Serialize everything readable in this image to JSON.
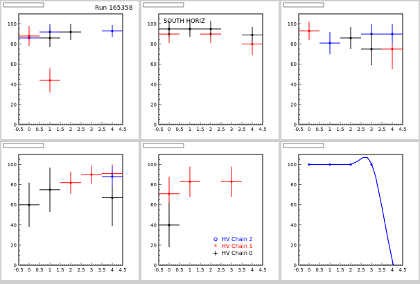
{
  "colors": {
    "blue": "#0000ff",
    "red": "#ff0000",
    "black": "#000000"
  },
  "run_label": "Run 165358",
  "south_label": "SOUTH HORIZ",
  "legend": [
    {
      "label": "HV Chain 2",
      "color": "#0000ff",
      "marker": "circle"
    },
    {
      "label": "HV Chain 1",
      "color": "#ff0000",
      "marker": "star"
    },
    {
      "label": "HV Chain 0",
      "color": "#000000",
      "marker": "plus"
    }
  ],
  "chart_data": [
    {
      "type": "scatter",
      "pad_title": "",
      "xlim": [
        -0.5,
        4.5
      ],
      "ylim": [
        0,
        110
      ],
      "xticks": [
        -0.5,
        0,
        0.5,
        1,
        1.5,
        2,
        2.5,
        3,
        3.5,
        4,
        4.5
      ],
      "yticks": [
        0,
        20,
        40,
        60,
        80,
        100
      ],
      "series": [
        {
          "color": "blue",
          "points": [
            {
              "x": 0,
              "y": 86,
              "ex": 0.5,
              "ey": 8
            },
            {
              "x": 1,
              "y": 92,
              "ex": 0.5,
              "ey": 8
            },
            {
              "x": 4,
              "y": 93,
              "ex": 0.5,
              "ey": 6
            }
          ]
        },
        {
          "color": "red",
          "points": [
            {
              "x": 0,
              "y": 88,
              "ex": 0.5,
              "ey": 10
            },
            {
              "x": 1,
              "y": 44,
              "ex": 0.5,
              "ey": 12
            }
          ]
        },
        {
          "color": "black",
          "points": [
            {
              "x": 1,
              "y": 86,
              "ex": 0.5,
              "ey": 9
            },
            {
              "x": 2,
              "y": 92,
              "ex": 0.5,
              "ey": 8
            }
          ]
        }
      ]
    },
    {
      "type": "scatter",
      "pad_title": "",
      "xlim": [
        -0.5,
        4.5
      ],
      "ylim": [
        0,
        110
      ],
      "xticks": [
        -0.5,
        0,
        0.5,
        1,
        1.5,
        2,
        2.5,
        3,
        3.5,
        4,
        4.5
      ],
      "yticks": [
        0,
        20,
        40,
        60,
        80,
        100
      ],
      "series": [
        {
          "color": "red",
          "points": [
            {
              "x": 0,
              "y": 90,
              "ex": 0.5,
              "ey": 9
            },
            {
              "x": 2,
              "y": 90,
              "ex": 0.5,
              "ey": 9
            },
            {
              "x": 4,
              "y": 80,
              "ex": 0.5,
              "ey": 11
            }
          ]
        },
        {
          "color": "black",
          "points": [
            {
              "x": 0,
              "y": 95,
              "ex": 0.5,
              "ey": 8
            },
            {
              "x": 1,
              "y": 95,
              "ex": 0.5,
              "ey": 8
            },
            {
              "x": 2,
              "y": 95,
              "ex": 0.5,
              "ey": 8
            },
            {
              "x": 4,
              "y": 89,
              "ex": 0.5,
              "ey": 8
            }
          ]
        }
      ]
    },
    {
      "type": "scatter",
      "pad_title": "",
      "xlim": [
        -0.5,
        4.5
      ],
      "ylim": [
        0,
        110
      ],
      "xticks": [
        -0.5,
        0,
        0.5,
        1,
        1.5,
        2,
        2.5,
        3,
        3.5,
        4,
        4.5
      ],
      "yticks": [
        0,
        20,
        40,
        60,
        80,
        100
      ],
      "series": [
        {
          "color": "red",
          "points": [
            {
              "x": 0,
              "y": 93,
              "ex": 0.5,
              "ey": 9
            },
            {
              "x": 4,
              "y": 75,
              "ex": 0.5,
              "ey": 20
            }
          ]
        },
        {
          "color": "blue",
          "points": [
            {
              "x": 1,
              "y": 81,
              "ex": 0.5,
              "ey": 11
            },
            {
              "x": 3,
              "y": 90,
              "ex": 0.5,
              "ey": 10
            },
            {
              "x": 4,
              "y": 90,
              "ex": 0.5,
              "ey": 10
            }
          ]
        },
        {
          "color": "black",
          "points": [
            {
              "x": 2,
              "y": 86,
              "ex": 0.5,
              "ey": 11
            },
            {
              "x": 3,
              "y": 75,
              "ex": 0.5,
              "ey": 16
            }
          ]
        }
      ]
    },
    {
      "type": "scatter",
      "pad_title": "",
      "xlim": [
        -0.5,
        4.5
      ],
      "ylim": [
        0,
        110
      ],
      "xticks": [
        -0.5,
        0,
        0.5,
        1,
        1.5,
        2,
        2.5,
        3,
        3.5,
        4,
        4.5
      ],
      "yticks": [
        0,
        20,
        40,
        60,
        80,
        100
      ],
      "series": [
        {
          "color": "black",
          "points": [
            {
              "x": 0,
              "y": 60,
              "ex": 0.5,
              "ey": 22
            },
            {
              "x": 1,
              "y": 75,
              "ex": 0.5,
              "ey": 22
            },
            {
              "x": 4,
              "y": 67,
              "ex": 0.5,
              "ey": 28
            }
          ]
        },
        {
          "color": "red",
          "points": [
            {
              "x": 2,
              "y": 82,
              "ex": 0.5,
              "ey": 11
            },
            {
              "x": 3,
              "y": 90,
              "ex": 0.5,
              "ey": 9
            },
            {
              "x": 4,
              "y": 91,
              "ex": 0.5,
              "ey": 9
            }
          ]
        },
        {
          "color": "blue",
          "points": [
            {
              "x": 4,
              "y": 88,
              "ex": 0.5,
              "ey": 10
            }
          ]
        }
      ]
    },
    {
      "type": "scatter",
      "pad_title": "",
      "xlim": [
        -0.5,
        4.5
      ],
      "ylim": [
        0,
        110
      ],
      "xticks": [
        -0.5,
        0,
        0.5,
        1,
        1.5,
        2,
        2.5,
        3,
        3.5,
        4,
        4.5
      ],
      "yticks": [
        0,
        20,
        40,
        60,
        80,
        100
      ],
      "series": [
        {
          "color": "red",
          "points": [
            {
              "x": 0,
              "y": 71,
              "ex": 0.5,
              "ey": 17
            },
            {
              "x": 1,
              "y": 83,
              "ex": 0.5,
              "ey": 15
            },
            {
              "x": 3,
              "y": 83,
              "ex": 0.5,
              "ey": 15
            }
          ]
        },
        {
          "color": "black",
          "points": [
            {
              "x": 0,
              "y": 40,
              "ex": 0.5,
              "ey": 22
            }
          ]
        }
      ]
    },
    {
      "type": "line",
      "pad_title": "",
      "xlim": [
        -0.5,
        4.5
      ],
      "ylim": [
        0,
        110
      ],
      "xticks": [
        -0.5,
        0,
        0.5,
        1,
        1.5,
        2,
        2.5,
        3,
        3.5,
        4,
        4.5
      ],
      "yticks": [
        0,
        20,
        40,
        60,
        80,
        100
      ],
      "series": [
        {
          "color": "blue",
          "points": [
            {
              "x": 0,
              "y": 100
            },
            {
              "x": 1,
              "y": 100
            },
            {
              "x": 2,
              "y": 100
            },
            {
              "x": 3,
              "y": 100
            }
          ],
          "curve": [
            [
              0,
              100
            ],
            [
              0.5,
              100
            ],
            [
              1,
              100
            ],
            [
              1.5,
              100
            ],
            [
              2,
              100
            ],
            [
              2.3,
              103
            ],
            [
              2.6,
              107
            ],
            [
              2.8,
              107
            ],
            [
              3,
              101
            ],
            [
              3.2,
              88
            ],
            [
              3.5,
              58
            ],
            [
              3.8,
              25
            ],
            [
              4.05,
              0
            ]
          ]
        }
      ]
    }
  ]
}
